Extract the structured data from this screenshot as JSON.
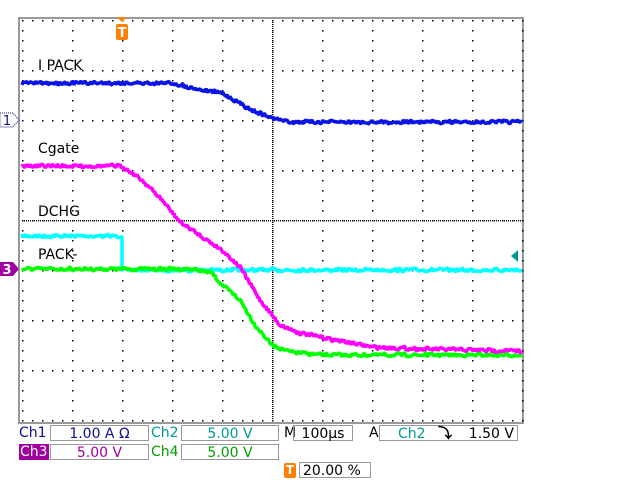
{
  "chart_data": {
    "type": "line",
    "xlabel": "",
    "ylabel": "",
    "x_unit": "µs",
    "y_unit": "div",
    "xlim": [
      -200,
      800
    ],
    "ylim": [
      -4,
      4
    ],
    "grid": true,
    "series": [
      {
        "name": "I PACK",
        "channel": "Ch1",
        "color": "#0a14e6",
        "x": [
          -200,
          100,
          160,
          200,
          260,
          300,
          336,
          800
        ],
        "y": [
          2.74,
          2.74,
          2.6,
          2.54,
          2.2,
          2.04,
          1.96,
          1.96
        ]
      },
      {
        "name": "Cgate",
        "channel": "Ch3",
        "color": "#ff00ff",
        "x": [
          -200,
          0,
          40,
          80,
          116,
          200,
          236,
          276,
          316,
          356,
          396,
          500,
          600,
          800
        ],
        "y": [
          1.08,
          1.08,
          0.8,
          0.4,
          -0.04,
          -0.6,
          -0.94,
          -1.6,
          -2.1,
          -2.26,
          -2.34,
          -2.54,
          -2.58,
          -2.62
        ]
      },
      {
        "name": "DCHG",
        "channel": "Ch2",
        "color": "#00ffff",
        "x": [
          -200,
          0,
          0,
          800
        ],
        "y": [
          -0.32,
          -0.32,
          -1.0,
          -1.0
        ]
      },
      {
        "name": "PACK-",
        "channel": "Ch4",
        "color": "#00ff00",
        "x": [
          -200,
          140,
          180,
          200,
          236,
          266,
          300,
          336,
          400,
          800
        ],
        "y": [
          -0.98,
          -0.98,
          -1.06,
          -1.3,
          -1.6,
          -2.1,
          -2.5,
          -2.64,
          -2.7,
          -2.7
        ]
      }
    ]
  },
  "markers": {
    "ch1": "1",
    "ch3": "3",
    "trigger": "T"
  },
  "status": {
    "ch1_label": "Ch1",
    "ch1_scale": "1.00 A Ω",
    "ch2_label": "Ch2",
    "ch2_scale": "5.00 V",
    "ch3_label": "Ch3",
    "ch3_scale": "5.00 V",
    "ch4_label": "Ch4",
    "ch4_scale": "5.00 V",
    "m_label": "M",
    "timebase": "100µs",
    "a_label": "A",
    "trig_source": "Ch2",
    "trig_slope": "⤵",
    "trig_level": "1.50 V",
    "trig_position": "20.00 %"
  },
  "colors": {
    "ch1": "#101090",
    "ch2": "#009a9a",
    "ch3": "#a000a0",
    "ch4": "#00a000",
    "trigger": "#ff7f00"
  }
}
